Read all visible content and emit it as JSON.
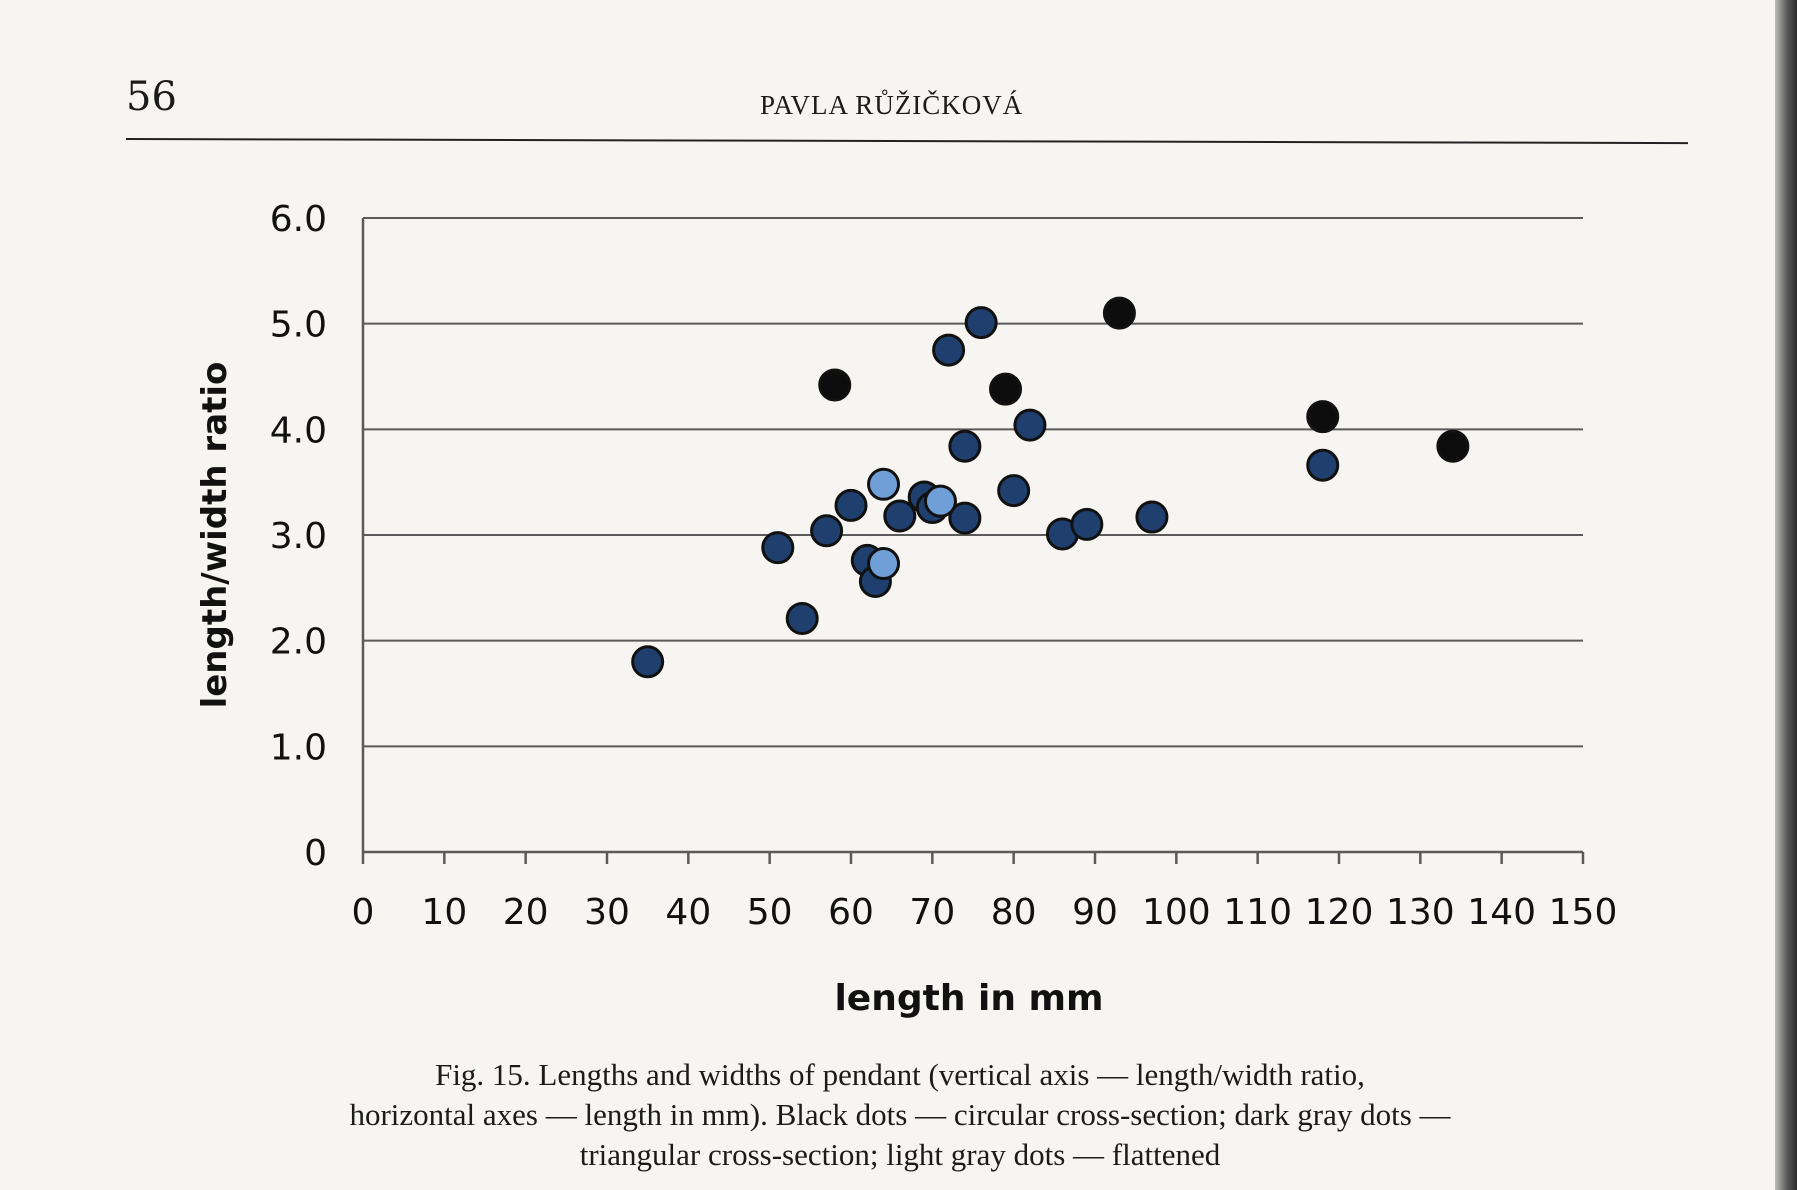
{
  "header": {
    "page_number": "56",
    "running_head": "PAVLA RŮŽIČKOVÁ"
  },
  "caption": {
    "lines": [
      "Fig. 15. Lengths and widths of pendant (vertical axis — length/width ratio,",
      "horizontal axes — length in mm). Black dots — circular cross-section; dark gray dots —",
      "triangular cross-section; light gray dots — flattened"
    ]
  },
  "colors": {
    "circular": "#0d0d0d",
    "triangular": "#1f3f6e",
    "flattened": "#6f9fd6",
    "grid": "#5a5a5a",
    "outline": "#111111"
  },
  "chart_data": {
    "type": "scatter",
    "title": "",
    "xlabel": "length in mm",
    "ylabel": "length/width ratio",
    "xlim": [
      0,
      150
    ],
    "ylim": [
      0,
      6
    ],
    "x_ticks": [
      0,
      10,
      20,
      30,
      40,
      50,
      60,
      70,
      80,
      90,
      100,
      110,
      120,
      130,
      140,
      150
    ],
    "x_tick_labels": [
      "0",
      "10",
      "20",
      "30",
      "40",
      "50",
      "60",
      "70",
      "80",
      "90",
      "100",
      "110",
      "120",
      "130",
      "140",
      "150"
    ],
    "y_ticks": [
      0,
      1,
      2,
      3,
      4,
      5,
      6
    ],
    "y_tick_labels": [
      "0",
      "1.0",
      "2.0",
      "3.0",
      "4.0",
      "5.0",
      "6.0"
    ],
    "grid": "horizontal",
    "legend": "none",
    "series": [
      {
        "group": "circular",
        "points": [
          [
            58,
            4.42
          ],
          [
            79,
            4.38
          ],
          [
            93,
            5.1
          ],
          [
            118,
            4.12
          ],
          [
            134,
            3.84
          ]
        ]
      },
      {
        "group": "triangular",
        "points": [
          [
            35,
            1.8
          ],
          [
            51,
            2.88
          ],
          [
            54,
            2.21
          ],
          [
            57,
            3.04
          ],
          [
            60,
            3.28
          ],
          [
            62,
            2.76
          ],
          [
            63,
            2.56
          ],
          [
            66,
            3.18
          ],
          [
            69,
            3.36
          ],
          [
            70,
            3.26
          ],
          [
            72,
            4.75
          ],
          [
            74,
            3.84
          ],
          [
            74,
            3.16
          ],
          [
            76,
            5.01
          ],
          [
            80,
            3.42
          ],
          [
            82,
            4.04
          ],
          [
            86,
            3.01
          ],
          [
            89,
            3.1
          ],
          [
            97,
            3.17
          ],
          [
            118,
            3.66
          ]
        ]
      },
      {
        "group": "flattened",
        "points": [
          [
            64,
            3.48
          ],
          [
            64,
            2.73
          ],
          [
            71,
            3.32
          ]
        ]
      }
    ]
  }
}
